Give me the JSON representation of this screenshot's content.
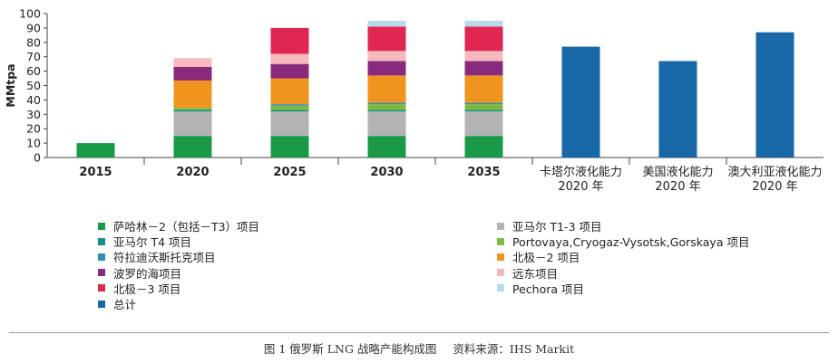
{
  "chart_data": {
    "type": "bar",
    "stacked": true,
    "ylabel": "MMtpa",
    "xlabel": "",
    "ylim": [
      0,
      100
    ],
    "yticks": [
      0,
      10,
      20,
      30,
      40,
      50,
      60,
      70,
      80,
      90,
      100
    ],
    "categories": [
      "2015",
      "2020",
      "2025",
      "2030",
      "2035",
      "卡塔尔液化能力\n2020 年",
      "美国液化能力\n2020 年",
      "澳大利亚液化能力\n2020 年"
    ],
    "grid": false,
    "series": [
      {
        "name": "萨哈林－2（包括－T3）项目",
        "color": "#1a9a48",
        "values": [
          10,
          15,
          15,
          15,
          15,
          0,
          0,
          0
        ]
      },
      {
        "name": "亚马尔 T1-3 项目",
        "color": "#b3b3b3",
        "values": [
          0,
          17,
          17,
          17,
          17,
          0,
          0,
          0
        ]
      },
      {
        "name": "亚马尔 T4 项目",
        "color": "#14918c",
        "values": [
          0,
          1,
          1,
          1,
          1,
          0,
          0,
          0
        ]
      },
      {
        "name": "Portovaya,Cryogaz-Vysotsk,Gorskaya 项目",
        "color": "#7cbb3d",
        "values": [
          0,
          1.5,
          3,
          4,
          4,
          0,
          0,
          0
        ]
      },
      {
        "name": "符拉迪沃斯托克项目",
        "color": "#2c91b8",
        "values": [
          0,
          0,
          1,
          1,
          1,
          0,
          0,
          0
        ]
      },
      {
        "name": "北极－2 项目",
        "color": "#ef941e",
        "values": [
          0,
          19,
          18,
          19,
          19,
          0,
          0,
          0
        ]
      },
      {
        "name": "波罗的海项目",
        "color": "#892a7c",
        "values": [
          0,
          9.5,
          10,
          10,
          10,
          0,
          0,
          0
        ]
      },
      {
        "name": "远东项目",
        "color": "#f6b9be",
        "values": [
          0,
          6,
          7,
          7,
          7,
          0,
          0,
          0
        ]
      },
      {
        "name": "北极－3 项目",
        "color": "#df2752",
        "values": [
          0,
          0,
          18,
          17,
          17,
          0,
          0,
          0
        ]
      },
      {
        "name": "Pechora 项目",
        "color": "#b4dcec",
        "values": [
          0,
          0,
          0,
          4,
          4,
          0,
          0,
          0
        ]
      },
      {
        "name": "总计",
        "color": "#1867a7",
        "values": [
          0,
          0,
          0,
          0,
          0,
          77,
          67,
          87
        ]
      }
    ],
    "legend_position": "bottom"
  },
  "legend": {
    "left": [
      "萨哈林－2（包括－T3）项目",
      "亚马尔 T4 项目",
      "符拉迪沃斯托克项目",
      "波罗的海项目",
      "北极－3 项目",
      "总计"
    ],
    "right": [
      "亚马尔尔 T1-3 项目",
      "Portovaya,Cryogaz-Vysotsk,Gorskaya 项目",
      "北极－2 项目",
      "远东项目",
      "Pechora 项目"
    ]
  },
  "caption": {
    "title": "图 1 俄罗斯 LNG 战略产能构成图",
    "source": "资料来源：IHS Markit"
  }
}
